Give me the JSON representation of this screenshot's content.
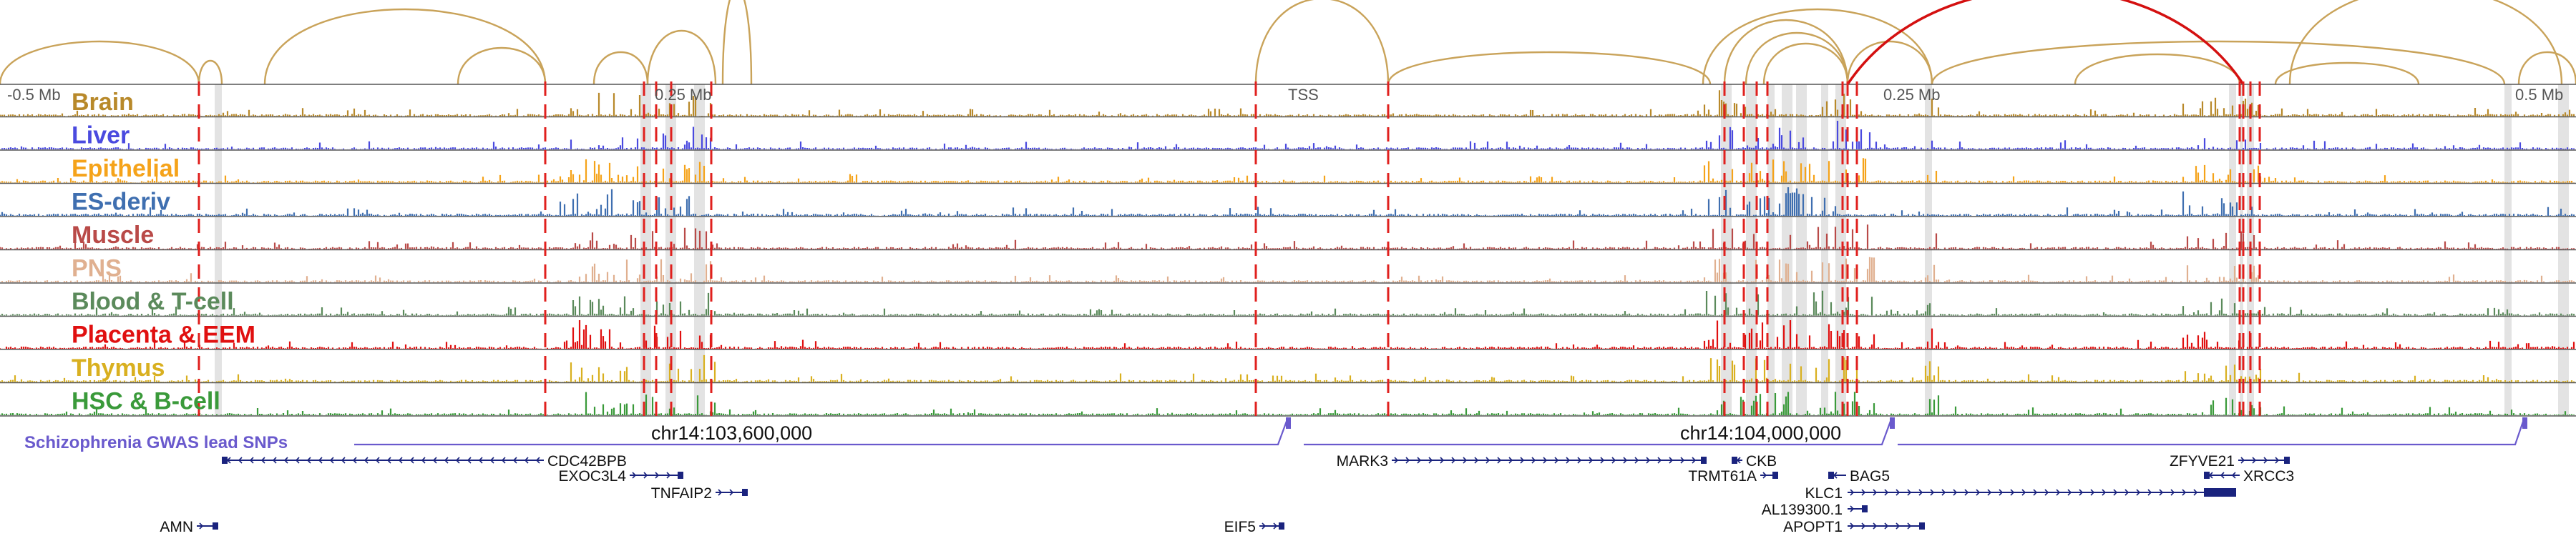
{
  "chart_data": {
    "type": "genome_browser",
    "region": {
      "chrom": "chr14",
      "ticks": [
        "chr14:103,600,000",
        "chr14:104,000,000"
      ]
    },
    "top_axis": {
      "ticks": [
        "-0.5 Mb",
        "0.25 Mb",
        "TSS",
        "0.25 Mb",
        "0.5 Mb"
      ]
    },
    "tracks": [
      {
        "name": "Brain",
        "color": "#b8892a"
      },
      {
        "name": "Liver",
        "color": "#4a4adf"
      },
      {
        "name": "Epithelial",
        "color": "#f5a31a"
      },
      {
        "name": "ES-deriv",
        "color": "#3f6fb0"
      },
      {
        "name": "Muscle",
        "color": "#b94a48"
      },
      {
        "name": "PNS",
        "color": "#e0b090"
      },
      {
        "name": "Blood & T-cell",
        "color": "#5b8a5b"
      },
      {
        "name": "Placenta & EEM",
        "color": "#e01010"
      },
      {
        "name": "Thymus",
        "color": "#d9b020"
      },
      {
        "name": "HSC & B-cell",
        "color": "#3a9a3a"
      }
    ],
    "gwas_track": {
      "label": "Schizophrenia GWAS lead SNPs",
      "color": "#6a5acd"
    },
    "genes": [
      {
        "name": "CDC42BPB",
        "strand": "-"
      },
      {
        "name": "EXOC3L4",
        "strand": "+"
      },
      {
        "name": "TNFAIP2",
        "strand": "+"
      },
      {
        "name": "AMN",
        "strand": "+"
      },
      {
        "name": "EIF5",
        "strand": "+"
      },
      {
        "name": "MARK3",
        "strand": "+"
      },
      {
        "name": "CKB",
        "strand": "-"
      },
      {
        "name": "TRMT61A",
        "strand": "+"
      },
      {
        "name": "BAG5",
        "strand": "-"
      },
      {
        "name": "KLC1",
        "strand": "+"
      },
      {
        "name": "AL139300.1",
        "strand": "+"
      },
      {
        "name": "APOPT1",
        "strand": "+"
      },
      {
        "name": "ZFYVE21",
        "strand": "+"
      },
      {
        "name": "XRCC3",
        "strand": "-"
      }
    ],
    "colors": {
      "arc": "#c9a35a",
      "arc_highlight": "#d41010",
      "tss_line": "#e0201e",
      "shade": "#d9d9d9",
      "gene": "#1a237e"
    }
  }
}
